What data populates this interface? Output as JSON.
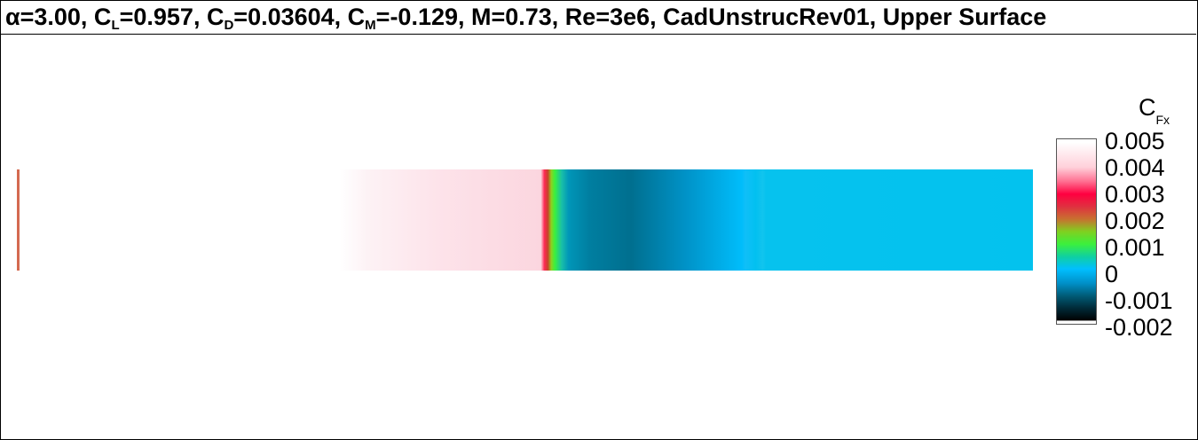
{
  "title": {
    "alpha_symbol": "α",
    "alpha": "=3.00, C",
    "cl_sub": "L",
    "cl": "=0.957, C",
    "cd_sub": "D",
    "cd": "=0.03604, C",
    "cm_sub": "M",
    "rest": "=-0.129, M=0.73, Re=3e6, CadUnstrucRev01, Upper Surface"
  },
  "legend": {
    "title_main": "C",
    "title_sub": "Fx",
    "ticks": [
      "0.005",
      "0.004",
      "0.003",
      "0.002",
      "0.001",
      "0",
      "-0.001",
      "-0.002"
    ]
  },
  "colors": {
    "leading_edge_line": "#d46a50",
    "pink": "#fde3ea",
    "red": "#ff0040",
    "green": "#3cf03c",
    "cyan": "#00bfff",
    "dark_teal": "#006f8f",
    "black": "#000000"
  }
}
